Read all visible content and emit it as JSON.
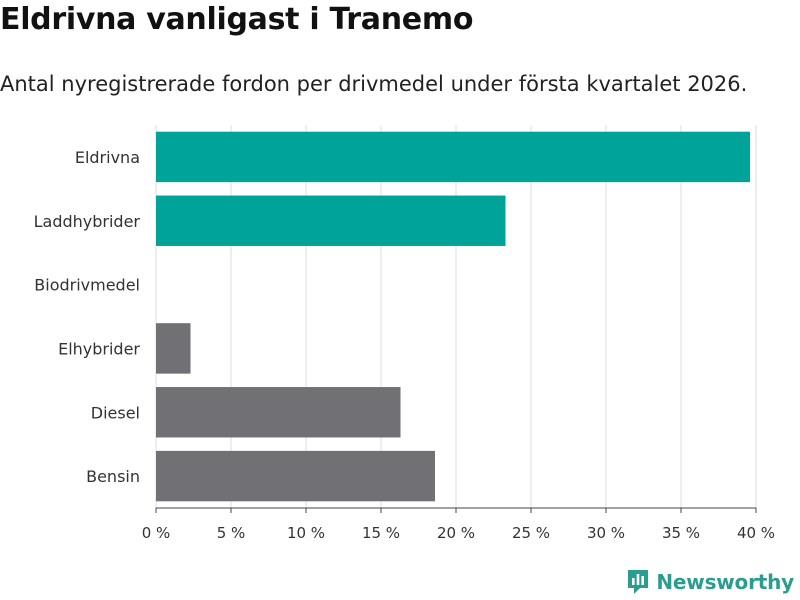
{
  "header": {
    "title": "Eldrivna vanligast i Tranemo",
    "subtitle": "Antal nyregistrerade fordon per drivmedel under första kvartalet 2026."
  },
  "brand": {
    "name": "Newsworthy",
    "color": "#2a9d8f",
    "icon": "newsworthy-logo-icon"
  },
  "chart_data": {
    "type": "bar",
    "orientation": "horizontal",
    "title": "Eldrivna vanligast i Tranemo",
    "subtitle": "Antal nyregistrerade fordon per drivmedel under första kvartalet 2026.",
    "categories": [
      "Eldrivna",
      "Laddhybrider",
      "Biodrivmedel",
      "Elhybrider",
      "Diesel",
      "Bensin"
    ],
    "values": [
      39.6,
      23.3,
      0,
      2.3,
      16.3,
      18.6
    ],
    "colors": [
      "#00a398",
      "#00a398",
      "#707075",
      "#707075",
      "#707075",
      "#707075"
    ],
    "xlim": [
      0,
      40
    ],
    "xticks": [
      0,
      5,
      10,
      15,
      20,
      25,
      30,
      35,
      40
    ],
    "xtick_labels": [
      "0 %",
      "5 %",
      "10 %",
      "15 %",
      "20 %",
      "25 %",
      "30 %",
      "35 %",
      "40 %"
    ],
    "xlabel": "",
    "ylabel": "",
    "grid": true,
    "unit": "%"
  }
}
